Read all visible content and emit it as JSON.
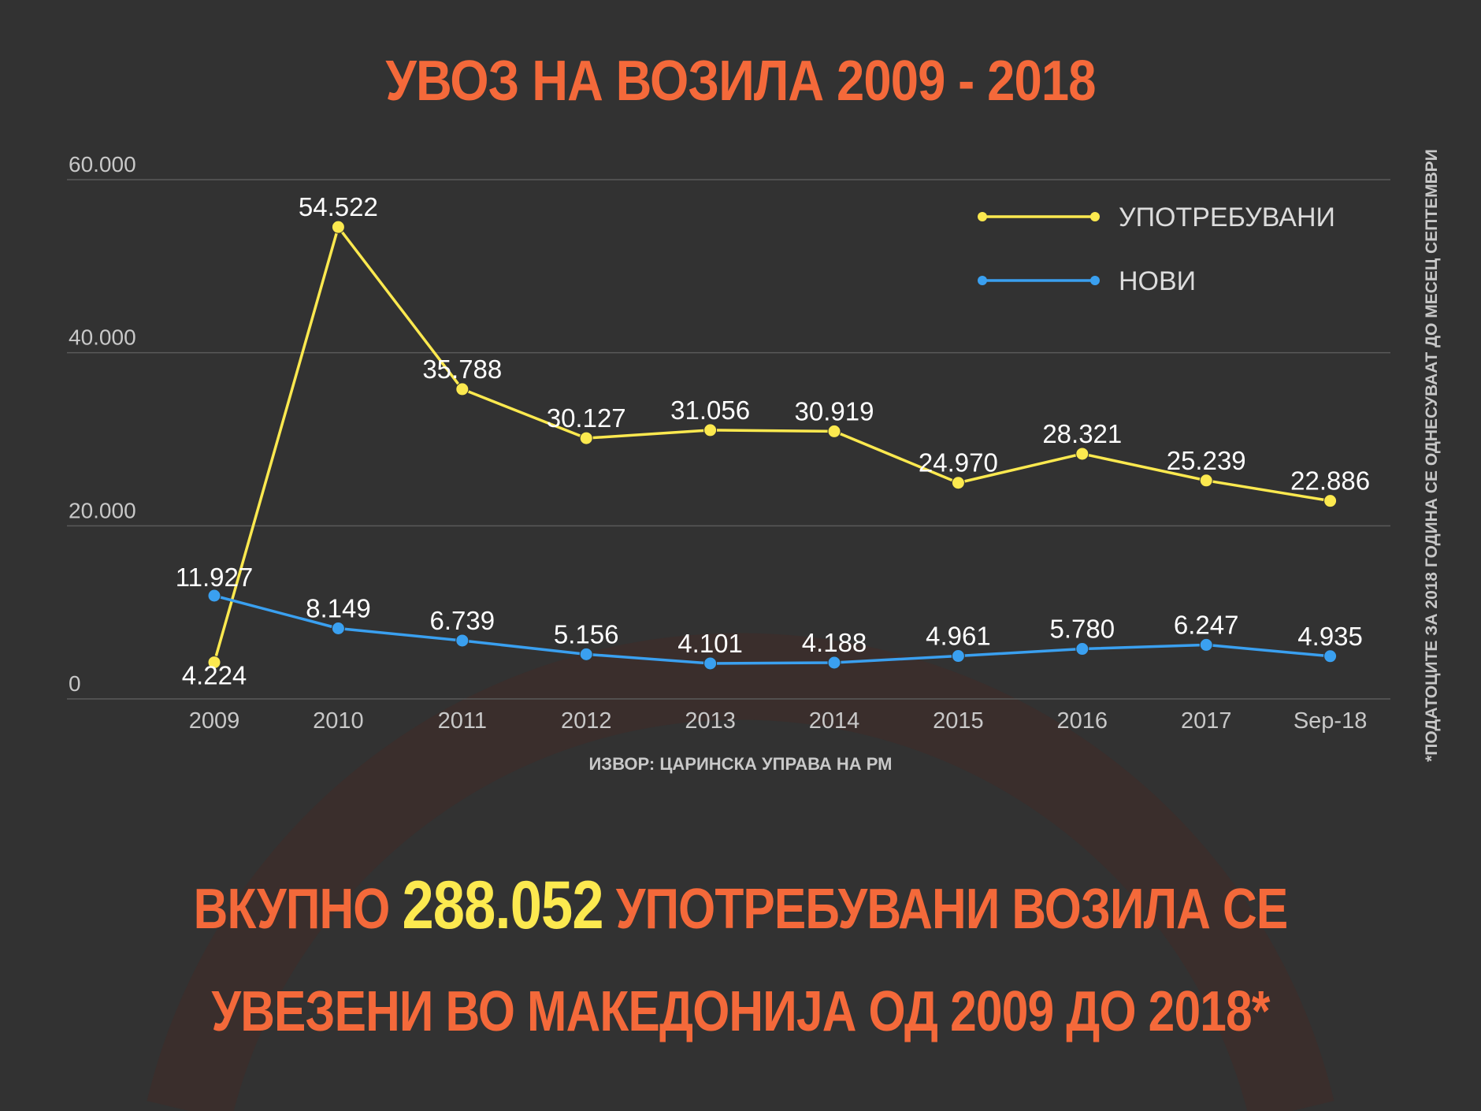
{
  "title": "УВОЗ НА ВОЗИЛА 2009 - 2018",
  "source": "ИЗВОР: ЦАРИНСКА УПРАВА НА РМ",
  "footnote": "*ПОДАТОЦИТЕ ЗА 2018 ГОДИНА СЕ ОДНЕСУВААТ ДО МЕСЕЦ СЕПТЕМВРИ",
  "headline": {
    "line1_before": "ВКУПНО",
    "highlight": "288.052",
    "line1_after": "УПОТРЕБУВАНИ ВОЗИЛА СЕ",
    "line2": "УВЕЗЕНИ ВО МАКЕДОНИЈА ОД 2009 ДО 2018*"
  },
  "colors": {
    "background": "#323232",
    "accent": "#f4693a",
    "highlight": "#fce94f",
    "used": "#fce94f",
    "new": "#3aa0f0",
    "grid": "#5a5a5a",
    "axis_text": "#c8c8c8"
  },
  "chart_data": {
    "type": "line",
    "categories": [
      "2009",
      "2010",
      "2011",
      "2012",
      "2013",
      "2014",
      "2015",
      "2016",
      "2017",
      "Sep-18"
    ],
    "ylim": [
      0,
      60000
    ],
    "yticks": [
      0,
      20000,
      40000,
      60000
    ],
    "ytick_labels": [
      "0",
      "20.000",
      "40.000",
      "60.000"
    ],
    "grid": true,
    "legend_position": "top-right",
    "series": [
      {
        "name": "УПОТРЕБУВАНИ",
        "color": "#fce94f",
        "values": [
          4224,
          54522,
          35788,
          30127,
          31056,
          30919,
          24970,
          28321,
          25239,
          22886
        ],
        "labels": [
          "4.224",
          "54.522",
          "35.788",
          "30.127",
          "31.056",
          "30.919",
          "24.970",
          "28.321",
          "25.239",
          "22.886"
        ]
      },
      {
        "name": "НОВИ",
        "color": "#3aa0f0",
        "values": [
          11927,
          8149,
          6739,
          5156,
          4101,
          4188,
          4961,
          5780,
          6247,
          4935
        ],
        "labels": [
          "11.927",
          "8.149",
          "6.739",
          "5.156",
          "4.101",
          "4.188",
          "4.961",
          "5.780",
          "6.247",
          "4.935"
        ]
      }
    ]
  }
}
